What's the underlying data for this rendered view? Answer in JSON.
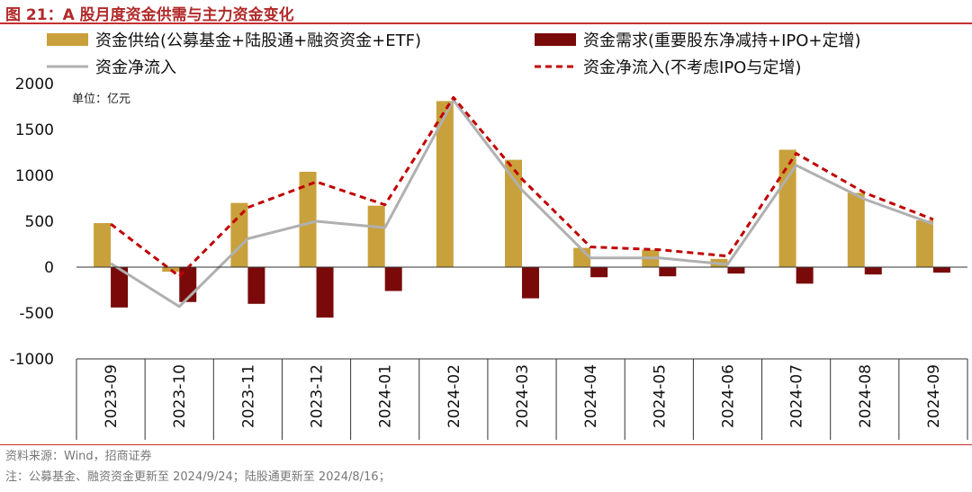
{
  "figure": {
    "title": "图 21：A 股月度资金供需与主力资金变化",
    "source": "资料来源：Wind，招商证券",
    "note": "注：公募基金、融资资金更新至 2024/9/24；陆股通更新至 2024/8/16；"
  },
  "chart_data": {
    "type": "bar",
    "categories": [
      "2023-09",
      "2023-10",
      "2023-11",
      "2023-12",
      "2024-01",
      "2024-02",
      "2024-03",
      "2024-04",
      "2024-05",
      "2024-06",
      "2024-07",
      "2024-08",
      "2024-09"
    ],
    "series": [
      {
        "name": "资金供给(公募基金+陆股通+融资资金+ETF)",
        "kind": "bar",
        "color": "#c9a13c",
        "values": [
          480,
          -50,
          700,
          1040,
          670,
          1810,
          1170,
          210,
          190,
          90,
          1280,
          810,
          510
        ]
      },
      {
        "name": "资金需求(重要股东净减持+IPO+定增)",
        "kind": "bar",
        "color": "#7a0a0a",
        "values": [
          -440,
          -380,
          -400,
          -550,
          -260,
          0,
          -340,
          -110,
          -100,
          -70,
          -180,
          -80,
          -60
        ]
      },
      {
        "name": "资金净流入",
        "kind": "line",
        "color": "#b0b0b0",
        "values": [
          40,
          -430,
          310,
          500,
          430,
          1820,
          840,
          100,
          100,
          30,
          1110,
          740,
          470
        ]
      },
      {
        "name": "资金净流入(不考虑IPO与定增)",
        "kind": "dashed-line",
        "color": "#c00000",
        "values": [
          470,
          -100,
          650,
          930,
          680,
          1850,
          960,
          220,
          190,
          120,
          1240,
          810,
          520
        ]
      }
    ],
    "unit_label": "单位：亿元",
    "ylim": [
      -1000,
      2000
    ],
    "yticks": [
      -1000,
      -500,
      0,
      500,
      1000,
      1500,
      2000
    ],
    "ytick_labels": [
      "-1000",
      "-500",
      "0",
      "500",
      "1000",
      "1500",
      "2000"
    ],
    "legend_position": "top",
    "grid": false
  }
}
